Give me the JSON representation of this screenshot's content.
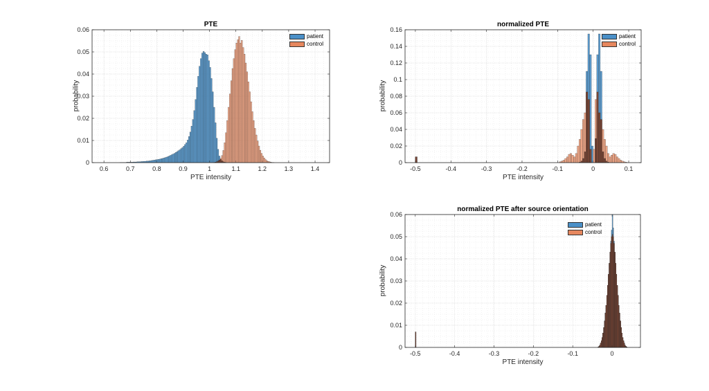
{
  "figure": {
    "background": "#ffffff",
    "colors": {
      "patient": "#4a90c8",
      "control": "#e6875e",
      "overlap": "#6b3a2a",
      "axis": "#262626",
      "grid": "#dcdcdc"
    }
  },
  "charts": [
    {
      "title": "PTE",
      "xlabel": "PTE intensity",
      "ylabel": "probability",
      "legend": [
        "patient",
        "control"
      ]
    },
    {
      "title": "normalized PTE",
      "xlabel": "PTE intensity",
      "ylabel": "probability",
      "legend": [
        "patient",
        "control"
      ]
    },
    {
      "title": "normalized PTE after source orientation",
      "xlabel": "PTE intensity",
      "ylabel": "probability",
      "legend": [
        "patient",
        "control"
      ]
    }
  ],
  "chart_data": [
    {
      "type": "bar",
      "subtype": "overlaid histogram",
      "title": "PTE",
      "xlabel": "PTE intensity",
      "ylabel": "probability",
      "xlim": [
        0.555,
        1.455
      ],
      "ylim": [
        0,
        0.06
      ],
      "xticks": [
        0.6,
        0.7,
        0.8,
        0.9,
        1,
        1.1,
        1.2,
        1.3,
        1.4
      ],
      "xtick_labels": [
        "0.6",
        "0.7",
        "0.8",
        "0.9",
        "1",
        "1.1",
        "1.2",
        "1.3",
        "1.4"
      ],
      "yticks": [
        0,
        0.01,
        0.02,
        0.03,
        0.04,
        0.05,
        0.06
      ],
      "ytick_labels": [
        "0",
        "0.01",
        "0.02",
        "0.03",
        "0.04",
        "0.05",
        "0.06"
      ],
      "grid": "on (major + minor)",
      "legend_position": "northeast",
      "bin_width": 0.005,
      "series": [
        {
          "name": "patient",
          "color": "#4a90c8",
          "x_start": 0.6,
          "values": [
            0,
            0,
            0,
            0,
            0,
            0,
            0,
            0,
            0,
            0,
            0,
            0,
            0.0001,
            0.0001,
            0.0001,
            0.0001,
            0.0001,
            0.0002,
            0.0002,
            0.0002,
            0.0002,
            0.0002,
            0.0003,
            0.0003,
            0.0003,
            0.0004,
            0.0004,
            0.0004,
            0.0005,
            0.0005,
            0.0006,
            0.0006,
            0.0007,
            0.0007,
            0.0008,
            0.0009,
            0.001,
            0.0011,
            0.0012,
            0.0013,
            0.0014,
            0.0015,
            0.0016,
            0.0018,
            0.0019,
            0.0021,
            0.0023,
            0.0025,
            0.0027,
            0.003,
            0.0033,
            0.0036,
            0.0039,
            0.0042,
            0.0046,
            0.005,
            0.0054,
            0.0058,
            0.0063,
            0.0068,
            0.0074,
            0.0082,
            0.009,
            0.0102,
            0.0118,
            0.0138,
            0.0165,
            0.0195,
            0.0235,
            0.0285,
            0.034,
            0.039,
            0.0435,
            0.047,
            0.0495,
            0.0502,
            0.0497,
            0.049,
            0.0487,
            0.046,
            0.043,
            0.038,
            0.032,
            0.025,
            0.018,
            0.011,
            0.006,
            0.003,
            0.0015,
            0.0008,
            0.0004,
            0.0002,
            0.0001,
            0,
            0,
            0,
            0,
            0,
            0,
            0,
            0,
            0,
            0,
            0,
            0,
            0,
            0,
            0,
            0,
            0,
            0,
            0,
            0,
            0,
            0,
            0,
            0,
            0,
            0,
            0,
            0,
            0,
            0,
            0,
            0,
            0,
            0,
            0,
            0,
            0,
            0,
            0,
            0,
            0,
            0,
            0,
            0,
            0,
            0,
            0,
            0,
            0,
            0,
            0,
            0,
            0,
            0,
            0,
            0,
            0,
            0,
            0,
            0,
            0,
            0,
            0,
            0,
            0,
            0,
            0,
            0,
            0,
            0,
            0,
            0,
            0,
            0,
            0,
            0,
            0,
            0,
            0
          ]
        },
        {
          "name": "control",
          "color": "#e6875e",
          "x_start": 0.6,
          "values": [
            0,
            0,
            0,
            0,
            0,
            0,
            0,
            0,
            0,
            0,
            0,
            0,
            0,
            0,
            0,
            0,
            0,
            0,
            0,
            0,
            0,
            0,
            0,
            0,
            0,
            0,
            0,
            0,
            0,
            0,
            0,
            0,
            0,
            0,
            0,
            0,
            0,
            0,
            0,
            0,
            0,
            0,
            0,
            0,
            0,
            0,
            0,
            0,
            0,
            0,
            0,
            0,
            0,
            0,
            0,
            0,
            0,
            0,
            0,
            0,
            0,
            0,
            0,
            0,
            0,
            0,
            0,
            0,
            0,
            0,
            0,
            0,
            0,
            0,
            0,
            0,
            0,
            0,
            0,
            0,
            0,
            0,
            0,
            0.0001,
            0.0002,
            0.0004,
            0.0007,
            0.0012,
            0.002,
            0.0032,
            0.0055,
            0.009,
            0.0135,
            0.019,
            0.025,
            0.031,
            0.037,
            0.0425,
            0.047,
            0.051,
            0.054,
            0.0555,
            0.057,
            0.054,
            0.0552,
            0.052,
            0.049,
            0.045,
            0.041,
            0.0365,
            0.032,
            0.0275,
            0.023,
            0.019,
            0.0155,
            0.0125,
            0.0098,
            0.0075,
            0.0056,
            0.0042,
            0.003,
            0.0021,
            0.0014,
            0.0009,
            0.0006,
            0.0004,
            0.0002,
            0.0001,
            0.0001,
            0,
            0,
            0,
            0,
            0,
            0,
            0,
            0,
            0,
            0,
            0,
            0,
            0,
            0,
            0,
            0,
            0,
            0,
            0,
            0
          ]
        }
      ]
    },
    {
      "type": "bar",
      "subtype": "overlaid histogram",
      "title": "normalized PTE",
      "xlabel": "PTE intensity",
      "ylabel": "probability",
      "xlim": [
        -0.529,
        0.135
      ],
      "ylim": [
        0,
        0.16
      ],
      "xticks": [
        -0.5,
        -0.4,
        -0.3,
        -0.2,
        -0.1,
        0,
        0.1
      ],
      "xtick_labels": [
        "-0.5",
        "-0.4",
        "-0.3",
        "-0.2",
        "-0.1",
        "0",
        "0.1"
      ],
      "yticks": [
        0,
        0.02,
        0.04,
        0.06,
        0.08,
        0.1,
        0.12,
        0.14,
        0.16
      ],
      "ytick_labels": [
        "0",
        "0.02",
        "0.04",
        "0.06",
        "0.08",
        "0.1",
        "0.12",
        "0.14",
        "0.16"
      ],
      "grid": "on (major + minor)",
      "legend_position": "northeast",
      "bin_width": 0.005,
      "series": [
        {
          "name": "patient",
          "color": "#4a90c8",
          "x": [
            -0.5,
            -0.04,
            -0.035,
            -0.03,
            -0.025,
            -0.02,
            -0.015,
            -0.01,
            -0.005,
            0.0,
            0.005,
            0.01,
            0.015,
            0.02,
            0.025,
            0.03,
            0.035,
            0.04
          ],
          "values": [
            0.007,
            0.0005,
            0.002,
            0.005,
            0.013,
            0.11,
            0.155,
            0.13,
            0.02,
            0,
            0.029,
            0.13,
            0.155,
            0.11,
            0.013,
            0.005,
            0.002,
            0.0005
          ]
        },
        {
          "name": "control",
          "color": "#e6875e",
          "x": [
            -0.5,
            -0.095,
            -0.09,
            -0.085,
            -0.08,
            -0.075,
            -0.07,
            -0.065,
            -0.06,
            -0.055,
            -0.05,
            -0.045,
            -0.04,
            -0.035,
            -0.03,
            -0.025,
            -0.02,
            -0.015,
            -0.01,
            -0.005,
            0.0,
            0.005,
            0.01,
            0.015,
            0.02,
            0.025,
            0.03,
            0.035,
            0.04,
            0.045,
            0.05,
            0.055,
            0.06,
            0.065,
            0.07,
            0.075,
            0.08,
            0.085,
            0.09,
            0.095
          ],
          "values": [
            0.007,
            0.001,
            0.002,
            0.003,
            0.005,
            0.007,
            0.01,
            0.011,
            0.009,
            0.007,
            0.011,
            0.02,
            0.028,
            0.04,
            0.052,
            0.06,
            0.085,
            0.076,
            0.016,
            0,
            0.016,
            0.076,
            0.085,
            0.06,
            0.052,
            0.04,
            0.028,
            0.02,
            0.011,
            0.007,
            0.009,
            0.011,
            0.01,
            0.007,
            0.005,
            0.003,
            0.002,
            0.001,
            0.0005,
            0
          ]
        }
      ]
    },
    {
      "type": "bar",
      "subtype": "overlaid histogram",
      "title": "normalized PTE after source orientation",
      "xlabel": "PTE intensity",
      "ylabel": "probability",
      "xlim": [
        -0.526,
        0.072
      ],
      "ylim": [
        0,
        0.06
      ],
      "xticks": [
        -0.5,
        -0.4,
        -0.3,
        -0.2,
        -0.1,
        0
      ],
      "xtick_labels": [
        "-0.5",
        "-0.4",
        "-0.3",
        "-0.2",
        "-0.1",
        "0"
      ],
      "yticks": [
        0,
        0.01,
        0.02,
        0.03,
        0.04,
        0.05,
        0.06
      ],
      "ytick_labels": [
        "0",
        "0.01",
        "0.02",
        "0.03",
        "0.04",
        "0.05",
        "0.06"
      ],
      "grid": "on (major + minor)",
      "legend_position": "northeast",
      "bin_width": 0.002,
      "series": [
        {
          "name": "patient",
          "color": "#4a90c8",
          "x": [
            -0.5,
            -0.036,
            -0.034,
            -0.032,
            -0.03,
            -0.028,
            -0.026,
            -0.024,
            -0.022,
            -0.02,
            -0.018,
            -0.016,
            -0.014,
            -0.012,
            -0.01,
            -0.008,
            -0.006,
            -0.004,
            -0.002,
            0.0,
            0.002,
            0.004,
            0.006,
            0.008,
            0.01,
            0.012,
            0.014,
            0.016,
            0.018,
            0.02,
            0.022,
            0.024,
            0.026,
            0.028,
            0.03,
            0.032,
            0.034,
            0.036
          ],
          "values": [
            0.007,
            0.0002,
            0.0005,
            0.001,
            0.002,
            0.003,
            0.0045,
            0.0065,
            0.009,
            0.012,
            0.0155,
            0.019,
            0.0235,
            0.028,
            0.033,
            0.038,
            0.043,
            0.048,
            0.053,
            0.06,
            0.054,
            0.048,
            0.043,
            0.038,
            0.033,
            0.028,
            0.0235,
            0.019,
            0.0155,
            0.012,
            0.009,
            0.0065,
            0.0045,
            0.003,
            0.002,
            0.001,
            0.0005,
            0.0002
          ]
        },
        {
          "name": "control",
          "color": "#e6875e",
          "x": [
            -0.5,
            -0.036,
            -0.034,
            -0.032,
            -0.03,
            -0.028,
            -0.026,
            -0.024,
            -0.022,
            -0.02,
            -0.018,
            -0.016,
            -0.014,
            -0.012,
            -0.01,
            -0.008,
            -0.006,
            -0.004,
            -0.002,
            0.0,
            0.002,
            0.004,
            0.006,
            0.008,
            0.01,
            0.012,
            0.014,
            0.016,
            0.018,
            0.02,
            0.022,
            0.024,
            0.026,
            0.028,
            0.03,
            0.032,
            0.034,
            0.036
          ],
          "values": [
            0.007,
            0.0002,
            0.0005,
            0.001,
            0.002,
            0.003,
            0.0045,
            0.0065,
            0.009,
            0.012,
            0.0155,
            0.019,
            0.0235,
            0.028,
            0.033,
            0.038,
            0.043,
            0.047,
            0.05,
            0.051,
            0.05,
            0.047,
            0.043,
            0.038,
            0.033,
            0.028,
            0.0235,
            0.019,
            0.0155,
            0.012,
            0.009,
            0.0065,
            0.0045,
            0.003,
            0.002,
            0.001,
            0.0005,
            0.0002
          ]
        }
      ]
    }
  ]
}
